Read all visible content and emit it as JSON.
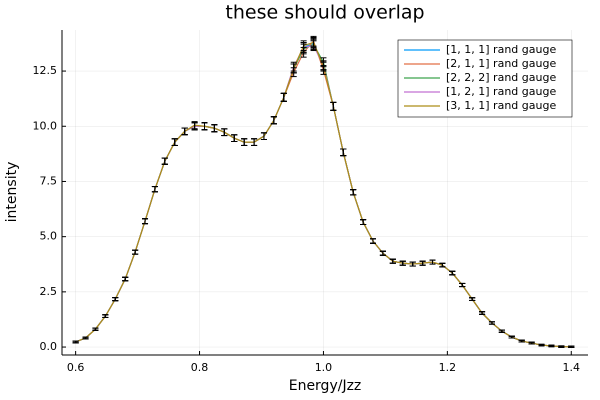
{
  "chart_data": {
    "type": "line",
    "title": "these should overlap",
    "x_label": "Energy/Jzz",
    "y_label": "intensity",
    "xlim": [
      0.578,
      1.427
    ],
    "ylim": [
      -0.36,
      14.36
    ],
    "xticks": [
      0.6,
      0.8,
      {
        "value": 1.0,
        "label": "1.0"
      },
      1.2,
      1.4
    ],
    "yticks": [
      {
        "value": 0,
        "label": "0.0"
      },
      2.5,
      {
        "value": 5,
        "label": "5.0"
      },
      7.5,
      {
        "value": 10,
        "label": "10.0"
      },
      12.5
    ],
    "grid": true,
    "legend": "upper right",
    "error_color": "#000000",
    "x": [
      0.6,
      0.616,
      0.632,
      0.648,
      0.664,
      0.68,
      0.696,
      0.712,
      0.728,
      0.744,
      0.76,
      0.776,
      0.792,
      0.808,
      0.824,
      0.84,
      0.856,
      0.872,
      0.888,
      0.904,
      0.92,
      0.936,
      0.952,
      0.968,
      0.984,
      1.0,
      1.016,
      1.032,
      1.048,
      1.064,
      1.08,
      1.096,
      1.112,
      1.128,
      1.144,
      1.16,
      1.176,
      1.192,
      1.208,
      1.224,
      1.24,
      1.256,
      1.272,
      1.288,
      1.304,
      1.32,
      1.336,
      1.352,
      1.368,
      1.384,
      1.4
    ],
    "series": [
      {
        "name": "[1, 1, 1] rand gauge",
        "color": "#009af9",
        "values": [
          0.23,
          0.41,
          0.81,
          1.4,
          2.17,
          3.08,
          4.3,
          5.7,
          7.15,
          8.42,
          9.28,
          9.77,
          10.0,
          10.0,
          9.91,
          9.73,
          9.46,
          9.28,
          9.28,
          9.55,
          10.27,
          11.31,
          12.62,
          13.57,
          13.76,
          12.76,
          10.9,
          8.82,
          7.01,
          5.66,
          4.8,
          4.25,
          3.89,
          3.8,
          3.76,
          3.8,
          3.85,
          3.71,
          3.35,
          2.81,
          2.17,
          1.54,
          1.09,
          0.72,
          0.45,
          0.27,
          0.18,
          0.09,
          0.05,
          0.02,
          0.01
        ],
        "errors": [
          0.04,
          0.04,
          0.05,
          0.06,
          0.07,
          0.08,
          0.09,
          0.11,
          0.12,
          0.14,
          0.15,
          0.15,
          0.16,
          0.16,
          0.16,
          0.15,
          0.15,
          0.15,
          0.15,
          0.15,
          0.16,
          0.18,
          0.2,
          0.22,
          0.22,
          0.2,
          0.18,
          0.15,
          0.12,
          0.11,
          0.1,
          0.09,
          0.09,
          0.09,
          0.09,
          0.09,
          0.09,
          0.08,
          0.08,
          0.07,
          0.06,
          0.06,
          0.05,
          0.05,
          0.04,
          0.04,
          0.04,
          0.03,
          0.03,
          0.03,
          0.03
        ]
      },
      {
        "name": "[2, 1, 1] rand gauge",
        "color": "#e26f46",
        "values": [
          0.23,
          0.41,
          0.81,
          1.4,
          2.17,
          3.08,
          4.3,
          5.7,
          7.15,
          8.42,
          9.28,
          9.77,
          10.0,
          10.0,
          9.91,
          9.73,
          9.46,
          9.28,
          9.28,
          9.55,
          10.27,
          11.31,
          12.45,
          13.35,
          13.85,
          12.55,
          10.9,
          8.82,
          7.01,
          5.66,
          4.8,
          4.25,
          3.89,
          3.8,
          3.76,
          3.8,
          3.85,
          3.71,
          3.35,
          2.81,
          2.17,
          1.54,
          1.09,
          0.72,
          0.45,
          0.27,
          0.18,
          0.09,
          0.05,
          0.02,
          0.01
        ],
        "errors": [
          0.04,
          0.04,
          0.05,
          0.06,
          0.07,
          0.08,
          0.09,
          0.11,
          0.12,
          0.14,
          0.15,
          0.15,
          0.16,
          0.16,
          0.16,
          0.15,
          0.15,
          0.15,
          0.15,
          0.15,
          0.16,
          0.18,
          0.2,
          0.22,
          0.22,
          0.2,
          0.18,
          0.15,
          0.12,
          0.11,
          0.1,
          0.09,
          0.09,
          0.09,
          0.09,
          0.09,
          0.09,
          0.08,
          0.08,
          0.07,
          0.06,
          0.06,
          0.05,
          0.05,
          0.04,
          0.04,
          0.04,
          0.03,
          0.03,
          0.03,
          0.03
        ]
      },
      {
        "name": "[2, 2, 2] rand gauge",
        "color": "#3da44d",
        "values": [
          0.23,
          0.41,
          0.81,
          1.4,
          2.17,
          3.08,
          4.3,
          5.7,
          7.15,
          8.42,
          9.28,
          9.77,
          10.0,
          10.0,
          9.91,
          9.73,
          9.46,
          9.28,
          9.28,
          9.55,
          10.27,
          11.31,
          12.62,
          13.5,
          13.7,
          12.9,
          10.9,
          8.82,
          7.01,
          5.66,
          4.8,
          4.25,
          3.89,
          3.8,
          3.76,
          3.8,
          3.85,
          3.71,
          3.35,
          2.81,
          2.17,
          1.54,
          1.09,
          0.72,
          0.45,
          0.27,
          0.18,
          0.09,
          0.05,
          0.02,
          0.01
        ],
        "errors": [
          0.04,
          0.04,
          0.05,
          0.06,
          0.07,
          0.08,
          0.09,
          0.11,
          0.12,
          0.14,
          0.15,
          0.15,
          0.16,
          0.16,
          0.16,
          0.15,
          0.15,
          0.15,
          0.15,
          0.15,
          0.16,
          0.18,
          0.2,
          0.22,
          0.22,
          0.2,
          0.18,
          0.15,
          0.12,
          0.11,
          0.1,
          0.09,
          0.09,
          0.09,
          0.09,
          0.09,
          0.09,
          0.08,
          0.08,
          0.07,
          0.06,
          0.06,
          0.05,
          0.05,
          0.04,
          0.04,
          0.04,
          0.03,
          0.03,
          0.03,
          0.03
        ]
      },
      {
        "name": "[1, 2, 1] rand gauge",
        "color": "#c271d2",
        "values": [
          0.23,
          0.41,
          0.81,
          1.4,
          2.17,
          3.08,
          4.3,
          5.7,
          7.15,
          8.42,
          9.28,
          9.77,
          10.0,
          10.0,
          9.91,
          9.73,
          9.46,
          9.28,
          9.28,
          9.55,
          10.27,
          11.31,
          12.7,
          13.57,
          13.65,
          12.76,
          10.9,
          8.82,
          7.01,
          5.66,
          4.8,
          4.25,
          3.89,
          3.8,
          3.76,
          3.8,
          3.85,
          3.71,
          3.35,
          2.81,
          2.17,
          1.54,
          1.09,
          0.72,
          0.45,
          0.27,
          0.18,
          0.09,
          0.05,
          0.02,
          0.01
        ],
        "errors": [
          0.04,
          0.04,
          0.05,
          0.06,
          0.07,
          0.08,
          0.09,
          0.11,
          0.12,
          0.14,
          0.15,
          0.15,
          0.16,
          0.16,
          0.16,
          0.15,
          0.15,
          0.15,
          0.15,
          0.15,
          0.16,
          0.18,
          0.2,
          0.22,
          0.22,
          0.2,
          0.18,
          0.15,
          0.12,
          0.11,
          0.1,
          0.09,
          0.09,
          0.09,
          0.09,
          0.09,
          0.09,
          0.08,
          0.08,
          0.07,
          0.06,
          0.06,
          0.05,
          0.05,
          0.04,
          0.04,
          0.04,
          0.03,
          0.03,
          0.03,
          0.03
        ]
      },
      {
        "name": "[3, 1, 1] rand gauge",
        "color": "#ac8e18",
        "values": [
          0.23,
          0.41,
          0.81,
          1.4,
          2.17,
          3.08,
          4.3,
          5.7,
          7.15,
          8.42,
          9.28,
          9.77,
          10.05,
          10.0,
          9.91,
          9.73,
          9.46,
          9.28,
          9.28,
          9.55,
          10.27,
          11.31,
          12.62,
          13.65,
          13.8,
          12.7,
          10.9,
          8.82,
          7.01,
          5.66,
          4.8,
          4.25,
          3.89,
          3.8,
          3.76,
          3.8,
          3.85,
          3.71,
          3.35,
          2.81,
          2.17,
          1.54,
          1.09,
          0.72,
          0.45,
          0.27,
          0.18,
          0.09,
          0.05,
          0.02,
          0.01
        ],
        "errors": [
          0.04,
          0.04,
          0.05,
          0.06,
          0.07,
          0.08,
          0.09,
          0.11,
          0.12,
          0.14,
          0.15,
          0.15,
          0.16,
          0.16,
          0.16,
          0.15,
          0.15,
          0.15,
          0.15,
          0.15,
          0.16,
          0.18,
          0.2,
          0.22,
          0.22,
          0.2,
          0.18,
          0.15,
          0.12,
          0.11,
          0.1,
          0.09,
          0.09,
          0.09,
          0.09,
          0.09,
          0.09,
          0.08,
          0.08,
          0.07,
          0.06,
          0.06,
          0.05,
          0.05,
          0.04,
          0.04,
          0.04,
          0.03,
          0.03,
          0.03,
          0.03
        ]
      }
    ]
  }
}
